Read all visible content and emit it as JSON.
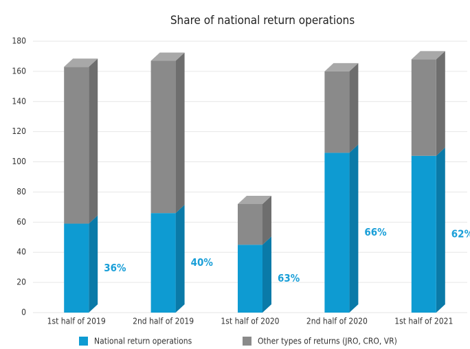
{
  "chart_data": {
    "type": "stacked_bar_3d",
    "title": "Share of national return operations",
    "categories": [
      "1st half of 2019",
      "2nd half of 2019",
      "1st half of 2020",
      "2nd half of 2020",
      "1st half of 2021"
    ],
    "series": [
      {
        "name": "National return operations",
        "color": "#0e9bd2",
        "side_color": "#0a7aa8",
        "values": [
          59,
          66,
          45,
          106,
          104
        ]
      },
      {
        "name": "Other types of returns (JRO, CRO, VR)",
        "color": "#8a8a8a",
        "side_color": "#6e6e6e",
        "values": [
          104,
          101,
          27,
          54,
          64
        ]
      }
    ],
    "shares": [
      "36%",
      "40%",
      "63%",
      "66%",
      "62%"
    ],
    "ylim": [
      0,
      180
    ],
    "yticks": [
      0,
      20,
      40,
      60,
      80,
      100,
      120,
      140,
      160,
      180
    ],
    "grid": true,
    "legend": "bottom"
  }
}
